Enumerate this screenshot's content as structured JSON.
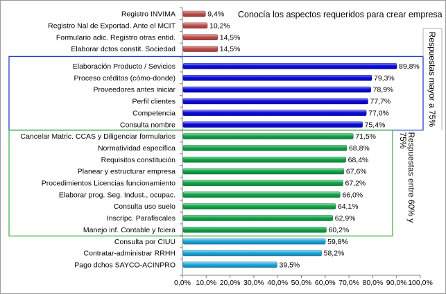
{
  "chart_data": {
    "type": "bar",
    "orientation": "horizontal",
    "title": "Conocía los aspectos requeridos para crear empresa",
    "categories": [
      "Registro INVIMA",
      "Registro Nal de Exportad. Ante el MCIT",
      "Formulario adic. Registro otras entid.",
      "Elaborar dctos constit. Sociedad",
      "Elaboración Producto / Sevicios",
      "Proceso créditos (cómo-donde)",
      "Proveedores antes iniciar",
      "Perfil clientes",
      "Competencia",
      "Consulta nombre",
      "Cancelar Matric. CCAS y Diligenciar formularios",
      "Normatividad específica",
      "Requisitos constitución",
      "Planear y estructurar empresa",
      "Procedimientos Licencias funcionamiento",
      "Elaborar prog. Seg. Indust., ocupac.",
      "Consulta uso suelo",
      "Inscripc. Parafiscales",
      "Manejo inf. Contable y fciera",
      "Consulta por CIUU",
      "Contratar-administrar RRHH",
      "Pago dchos SAYCO-ACINPRO"
    ],
    "values": [
      9.4,
      10.2,
      14.5,
      14.5,
      89.8,
      79.3,
      78.9,
      77.7,
      77.0,
      75.4,
      71.5,
      68.8,
      68.4,
      67.6,
      67.2,
      66.0,
      64.1,
      62.9,
      60.2,
      59.8,
      58.2,
      39.5
    ],
    "value_labels": [
      "9,4%",
      "10,2%",
      "14,5%",
      "14,5%",
      "89,8%",
      "79,3%",
      "78,9%",
      "77,7%",
      "77,0%",
      "75,4%",
      "71,5%",
      "68,8%",
      "68,4%",
      "67,6%",
      "67,2%",
      "66,0%",
      "64,1%",
      "62,9%",
      "60,2%",
      "59,8%",
      "58,2%",
      "39,5%"
    ],
    "groups": [
      0,
      0,
      0,
      0,
      1,
      1,
      1,
      1,
      1,
      1,
      2,
      2,
      2,
      2,
      2,
      2,
      2,
      2,
      2,
      3,
      3,
      3
    ],
    "group_colors": [
      "#c0504d",
      "#0a0ae0",
      "#12a84a",
      "#1fa8e0"
    ],
    "xlim": [
      0,
      100
    ],
    "xticks": [
      0,
      10,
      20,
      30,
      40,
      50,
      60,
      70,
      80,
      90,
      100
    ],
    "xtick_labels": [
      "0,0%",
      "10,0%",
      "20,0%",
      "30,0%",
      "40,0%",
      "50,0%",
      "60,0%",
      "70,0%",
      "80,0%",
      "90,0%",
      "100,0%"
    ],
    "grid": false,
    "annotations": [
      {
        "text": "Respuestas mayor a 75%",
        "box_color": "#1f3fd0"
      },
      {
        "text": "Respuestas entre 60% y 75%",
        "box_color": "#46b446"
      }
    ]
  }
}
